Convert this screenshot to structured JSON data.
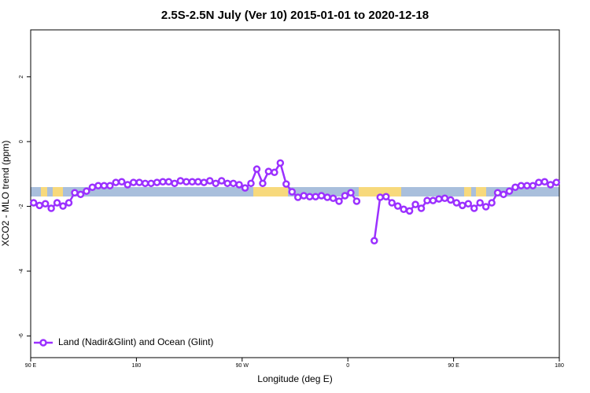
{
  "chart_data": {
    "type": "line",
    "title": "2.5S-2.5N July (Ver 10)   2015-01-01 to 2020-12-18",
    "x_label": "Longitude (deg E)",
    "y_label": "XCO2 - MLO trend (ppm)",
    "xlim": [
      90,
      540
    ],
    "ylim": [
      -6.67,
      3.45
    ],
    "xticks": [
      {
        "value": 90,
        "label": "90 E"
      },
      180,
      {
        "value": 270,
        "label": "90 W"
      },
      {
        "value": 360,
        "label": "0"
      },
      {
        "value": 450,
        "label": "90 E"
      },
      {
        "value": 540,
        "label": "180"
      }
    ],
    "yticks": [
      -6,
      -4,
      -2,
      0,
      2
    ],
    "legend": "bottomleft",
    "x": [
      92.5,
      97.5,
      102.5,
      107.5,
      112.5,
      117.5,
      122.5,
      127.5,
      132.5,
      137.5,
      142.5,
      147.5,
      152.5,
      157.5,
      162.5,
      167.5,
      172.5,
      177.5,
      182.5,
      187.5,
      192.5,
      197.5,
      202.5,
      207.5,
      212.5,
      217.5,
      222.5,
      227.5,
      232.5,
      237.5,
      242.5,
      247.5,
      252.5,
      257.5,
      262.5,
      267.5,
      272.5,
      277.5,
      282.5,
      287.5,
      292.5,
      297.5,
      302.5,
      307.5,
      312.5,
      317.5,
      322.5,
      327.5,
      332.5,
      337.5,
      342.5,
      347.5,
      352.5,
      357.5,
      362.5,
      367.5,
      372.5,
      377.5,
      382.5,
      387.5,
      392.5,
      397.5,
      402.5,
      407.5,
      412.5,
      417.5,
      422.5,
      427.5,
      432.5,
      437.5,
      442.5,
      447.5,
      452.5,
      457.5,
      462.5,
      467.5,
      472.5,
      477.5,
      482.5,
      487.5,
      492.5,
      497.5,
      502.5,
      507.5,
      512.5,
      517.5,
      522.5,
      527.5,
      532.5,
      537.5
    ],
    "series": [
      {
        "name": "Land (Nadir&Glint) and Ocean (Glint)",
        "color": "#9b30ff",
        "values": [
          -1.89,
          -1.97,
          -1.92,
          -2.06,
          -1.89,
          -1.99,
          -1.89,
          -1.58,
          -1.63,
          -1.53,
          -1.41,
          -1.36,
          -1.36,
          -1.36,
          -1.26,
          -1.24,
          -1.33,
          -1.26,
          -1.26,
          -1.29,
          -1.29,
          -1.26,
          -1.24,
          -1.24,
          -1.29,
          -1.21,
          -1.24,
          -1.24,
          -1.24,
          -1.26,
          -1.21,
          -1.29,
          -1.21,
          -1.29,
          -1.29,
          -1.33,
          -1.43,
          -1.29,
          -0.85,
          -1.29,
          -0.92,
          -0.95,
          -0.66,
          -1.31,
          -1.55,
          -1.72,
          -1.67,
          -1.7,
          -1.7,
          -1.67,
          -1.72,
          -1.75,
          -1.84,
          -1.67,
          -1.58,
          -1.84,
          null,
          null,
          -3.06,
          -1.72,
          -1.7,
          -1.89,
          -1.99,
          -2.09,
          -2.14,
          -1.94,
          -2.06,
          -1.82,
          -1.82,
          -1.77,
          -1.75,
          -1.8,
          -1.89,
          -1.97,
          -1.92,
          -2.06,
          -1.89,
          -2.01,
          -1.89,
          -1.58,
          -1.63,
          -1.53,
          -1.41,
          -1.36,
          -1.36,
          -1.36,
          -1.26,
          -1.24,
          -1.33,
          -1.26
        ]
      }
    ]
  }
}
